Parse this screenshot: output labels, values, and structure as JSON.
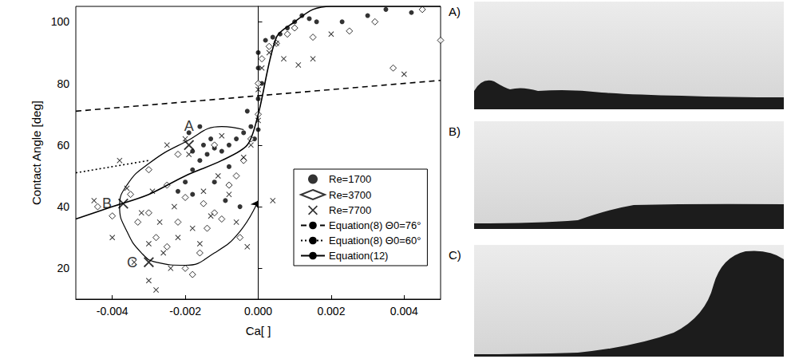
{
  "chart_data": {
    "type": "scatter",
    "xlabel": "Ca[ ]",
    "ylabel": "Contact Angle [deg]",
    "xlim": [
      -0.005,
      0.005
    ],
    "xticks": [
      -0.004,
      -0.002,
      {
        "value": 0,
        "label": "0.000"
      },
      0.002,
      0.004
    ],
    "ylim": [
      10,
      105
    ],
    "yticks": [
      20,
      40,
      60,
      80,
      100
    ],
    "grid": false,
    "legend": "lower right",
    "series": [
      {
        "name": "Re=1700",
        "type": "scatter",
        "marker": "circle",
        "color": "#000000",
        "x": [
          -0.0022,
          -0.002,
          -0.0018,
          -0.0016,
          -0.0018,
          -0.0015,
          -0.0013,
          -0.0014,
          -0.0012,
          -0.001,
          -0.0008,
          -0.0006,
          -0.0004,
          -0.0003,
          -0.0002,
          -0.0001,
          0,
          0,
          0,
          0,
          0.0001,
          0.0002,
          0.0004,
          0.0006,
          0.0008,
          0.001,
          0.0012,
          0.0014,
          0.0016,
          0.0023,
          0.003,
          0.0035,
          0.0042,
          -0.0018,
          -0.0012,
          -0.0005,
          -0.0019,
          -0.0016,
          -0.0008,
          -0.0009
        ],
        "values": [
          45,
          48,
          52,
          55,
          58,
          60,
          62,
          57,
          59,
          58,
          60,
          62,
          64,
          71,
          66,
          62,
          65,
          75,
          85,
          90,
          80,
          94,
          95,
          96,
          98,
          100,
          102,
          101,
          100,
          100,
          102,
          104,
          103,
          44,
          48,
          40,
          64,
          66,
          53,
          42
        ]
      },
      {
        "name": "Re=3700",
        "type": "scatter",
        "marker": "diamond_open",
        "color": "#000000",
        "x": [
          -0.0044,
          -0.004,
          -0.0035,
          -0.0033,
          -0.003,
          -0.0028,
          -0.0025,
          -0.0022,
          -0.002,
          -0.0018,
          -0.0016,
          -0.0014,
          -0.0012,
          -0.001,
          -0.0008,
          -0.0006,
          -0.0004,
          -0.0002,
          0,
          0,
          0.0001,
          0.0003,
          0.0005,
          0.0008,
          0.001,
          0.0015,
          0.0025,
          0.0032,
          0.0037,
          0.0045,
          0.005,
          -0.0025,
          -0.002,
          -0.0015,
          -0.0012,
          -0.0022,
          -0.003,
          -0.0005
        ],
        "values": [
          40,
          37,
          44,
          35,
          38,
          30,
          27,
          35,
          20,
          18,
          25,
          33,
          38,
          36,
          47,
          50,
          55,
          62,
          70,
          80,
          88,
          92,
          93,
          96,
          98,
          95,
          97,
          100,
          85,
          104,
          94,
          47,
          43,
          41,
          60,
          57,
          52,
          30
        ]
      },
      {
        "name": "Re=7700",
        "type": "scatter",
        "marker": "x",
        "color": "#000000",
        "x": [
          -0.0045,
          -0.004,
          -0.0038,
          -0.0036,
          -0.0034,
          -0.0032,
          -0.003,
          -0.003,
          -0.0028,
          -0.0027,
          -0.0026,
          -0.0024,
          -0.0023,
          -0.0022,
          -0.002,
          -0.0019,
          -0.0018,
          -0.0016,
          -0.0015,
          -0.0013,
          -0.0011,
          -0.001,
          -0.0008,
          -0.0006,
          -0.0004,
          -0.0003,
          -0.0002,
          0,
          0,
          0.0001,
          0.0003,
          0.0005,
          0.0007,
          0.0011,
          0.0015,
          0.002,
          0.004,
          -0.0025,
          -0.0029,
          0.0004
        ],
        "values": [
          42,
          30,
          55,
          46,
          22,
          38,
          28,
          16,
          13,
          35,
          25,
          20,
          40,
          30,
          62,
          57,
          33,
          28,
          45,
          37,
          50,
          63,
          44,
          35,
          56,
          27,
          60,
          68,
          78,
          85,
          90,
          93,
          88,
          86,
          88,
          96,
          83,
          60,
          45,
          42
        ]
      },
      {
        "name": "Equation(8) Θ0=76°",
        "type": "line",
        "line_style": "dashed",
        "color": "#000000",
        "x": [
          -0.005,
          0.005
        ],
        "values": [
          71,
          81
        ]
      },
      {
        "name": "Equation(8) Θ0=60°",
        "type": "line",
        "line_style": "dotted",
        "color": "#000000",
        "x": [
          -0.005,
          -0.003
        ],
        "values": [
          51,
          55
        ]
      },
      {
        "name": "Equation(12)",
        "type": "line",
        "line_style": "solid",
        "color": "#000000",
        "x": [
          -0.005,
          -0.004,
          -0.003,
          -0.002,
          -0.001,
          -0.0003,
          0,
          0.0005,
          0.001,
          0.0015,
          0.002,
          0.005
        ],
        "values": [
          36,
          40,
          44,
          50,
          55,
          60,
          70,
          95,
          100,
          104,
          105,
          105
        ]
      }
    ],
    "annotation_curve": {
      "x": [
        -0.0004,
        -0.001,
        -0.002,
        -0.003,
        -0.0036,
        -0.0038,
        -0.0036,
        -0.0032,
        -0.0028,
        -0.002,
        -0.0012,
        -0.0005,
        0
      ],
      "values": [
        65,
        66,
        61,
        54,
        47,
        40,
        32,
        25,
        22,
        21,
        25,
        32,
        42
      ]
    },
    "annotations": [
      {
        "text": "A",
        "x": -0.0019,
        "y": 60
      },
      {
        "text": "B",
        "x": -0.0037,
        "y": 41
      },
      {
        "text": "C",
        "x": -0.003,
        "y": 22
      }
    ]
  },
  "photos": [
    {
      "label": "A)"
    },
    {
      "label": "B)"
    },
    {
      "label": "C)"
    }
  ]
}
